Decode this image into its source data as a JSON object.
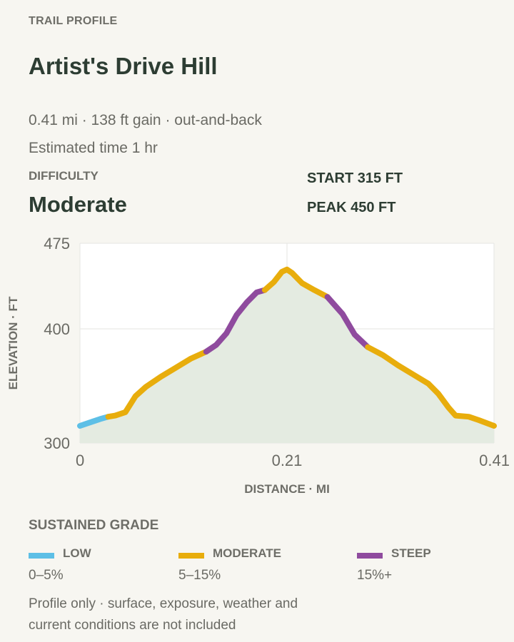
{
  "header": {
    "kicker": "TRAIL PROFILE",
    "title": "Artist's Drive Hill",
    "summary": "0.41 mi · 138 ft gain · out-and-back",
    "estimate": "Estimated time 1 hr"
  },
  "difficulty": {
    "label": "DIFFICULTY",
    "value": "Moderate"
  },
  "stats": {
    "start": "START 315 FT",
    "peak": "PEAK 450 FT"
  },
  "colors": {
    "low": "#5dbfe6",
    "moderate": "#e8ad0c",
    "steep": "#8f4b9e",
    "fill": "#e4ebe1",
    "plot_bg": "#ffffff",
    "grid": "#e6e6e2"
  },
  "chart_data": {
    "type": "area",
    "xlabel": "DISTANCE · MI",
    "ylabel": "ELEVATION · FT",
    "xlim": [
      0,
      0.41
    ],
    "ylim": [
      300,
      475
    ],
    "xticks": [
      {
        "value": 0,
        "label": "0"
      },
      {
        "value": 0.205,
        "label": "0.21"
      },
      {
        "value": 0.41,
        "label": "0.41"
      }
    ],
    "yticks": [
      {
        "value": 300,
        "label": "300"
      },
      {
        "value": 400,
        "label": "400"
      },
      {
        "value": 475,
        "label": "475"
      }
    ],
    "grid": true,
    "points": [
      {
        "x": 0.0,
        "y": 315
      },
      {
        "x": 0.01,
        "y": 318
      },
      {
        "x": 0.02,
        "y": 321
      },
      {
        "x": 0.028,
        "y": 323
      },
      {
        "x": 0.035,
        "y": 324
      },
      {
        "x": 0.045,
        "y": 327
      },
      {
        "x": 0.055,
        "y": 341
      },
      {
        "x": 0.065,
        "y": 349
      },
      {
        "x": 0.08,
        "y": 358
      },
      {
        "x": 0.095,
        "y": 366
      },
      {
        "x": 0.11,
        "y": 374
      },
      {
        "x": 0.125,
        "y": 380
      },
      {
        "x": 0.135,
        "y": 386
      },
      {
        "x": 0.145,
        "y": 396
      },
      {
        "x": 0.155,
        "y": 412
      },
      {
        "x": 0.165,
        "y": 423
      },
      {
        "x": 0.175,
        "y": 432
      },
      {
        "x": 0.183,
        "y": 434
      },
      {
        "x": 0.192,
        "y": 441
      },
      {
        "x": 0.2,
        "y": 450
      },
      {
        "x": 0.205,
        "y": 452
      },
      {
        "x": 0.21,
        "y": 449
      },
      {
        "x": 0.22,
        "y": 440
      },
      {
        "x": 0.232,
        "y": 434
      },
      {
        "x": 0.245,
        "y": 428
      },
      {
        "x": 0.26,
        "y": 413
      },
      {
        "x": 0.272,
        "y": 395
      },
      {
        "x": 0.285,
        "y": 384
      },
      {
        "x": 0.3,
        "y": 377
      },
      {
        "x": 0.315,
        "y": 368
      },
      {
        "x": 0.33,
        "y": 360
      },
      {
        "x": 0.345,
        "y": 352
      },
      {
        "x": 0.355,
        "y": 343
      },
      {
        "x": 0.365,
        "y": 331
      },
      {
        "x": 0.372,
        "y": 324
      },
      {
        "x": 0.385,
        "y": 323
      },
      {
        "x": 0.395,
        "y": 320
      },
      {
        "x": 0.41,
        "y": 315
      }
    ],
    "segments": [
      {
        "from": 0.0,
        "to": 0.028,
        "grade": "low"
      },
      {
        "from": 0.028,
        "to": 0.125,
        "grade": "moderate"
      },
      {
        "from": 0.125,
        "to": 0.183,
        "grade": "steep"
      },
      {
        "from": 0.183,
        "to": 0.245,
        "grade": "moderate"
      },
      {
        "from": 0.245,
        "to": 0.285,
        "grade": "steep"
      },
      {
        "from": 0.285,
        "to": 0.41,
        "grade": "moderate"
      }
    ]
  },
  "grade_legend": {
    "title": "SUSTAINED GRADE",
    "items": [
      {
        "key": "low",
        "name": "LOW",
        "range": "0–5%"
      },
      {
        "key": "moderate",
        "name": "MODERATE",
        "range": "5–15%"
      },
      {
        "key": "steep",
        "name": "STEEP",
        "range": "15%+"
      }
    ]
  },
  "footnote": "Profile only · surface, exposure, weather and current conditions are not included"
}
